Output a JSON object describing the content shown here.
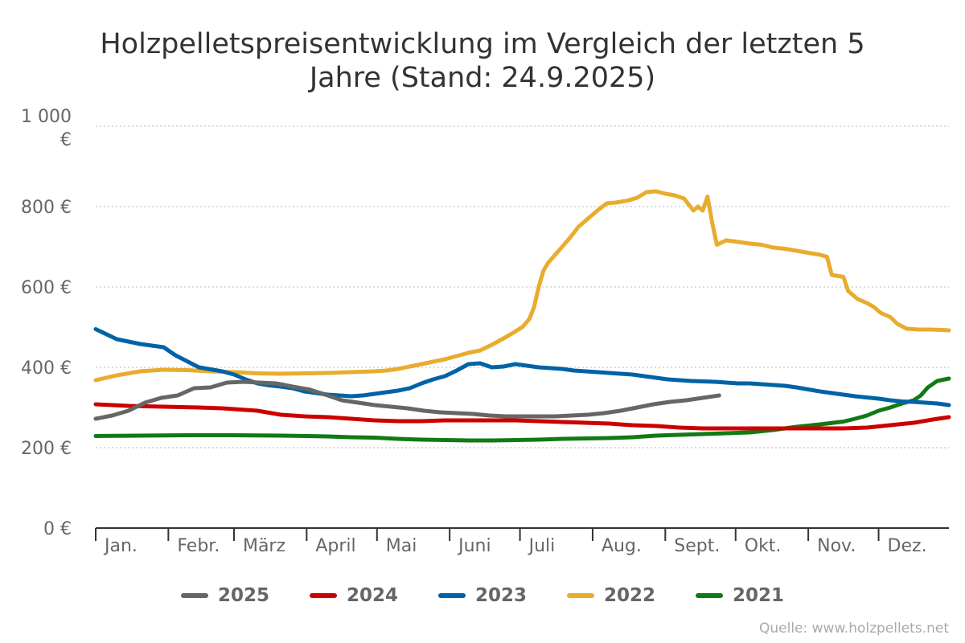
{
  "chart_data": {
    "type": "line",
    "title": "Holzpelletspreisentwicklung im Vergleich der letzten 5 Jahre (Stand: 24.9.2025)",
    "xlabel": "",
    "ylabel": "",
    "x_axis": {
      "type": "month-of-year",
      "categories": [
        "Jan.",
        "Febr.",
        "März",
        "April",
        "Mai",
        "Juni",
        "Juli",
        "Aug.",
        "Sept.",
        "Okt.",
        "Nov.",
        "Dez."
      ]
    },
    "y_axis": {
      "ylim": [
        0,
        1000
      ],
      "ticks": [
        0,
        200,
        400,
        600,
        800,
        1000
      ],
      "tick_labels": [
        "0 €",
        "200 €",
        "400 €",
        "600 €",
        "800 €",
        "1 000 €"
      ]
    },
    "grid": "horizontal dotted",
    "legend_position": "bottom",
    "series": [
      {
        "name": "2025",
        "color": "#666666",
        "points": [
          [
            1,
            272
          ],
          [
            8,
            280
          ],
          [
            15,
            292
          ],
          [
            22,
            312
          ],
          [
            29,
            324
          ],
          [
            36,
            330
          ],
          [
            43,
            348
          ],
          [
            50,
            350
          ],
          [
            57,
            362
          ],
          [
            64,
            364
          ],
          [
            71,
            362
          ],
          [
            78,
            360
          ],
          [
            85,
            352
          ],
          [
            92,
            345
          ],
          [
            99,
            332
          ],
          [
            106,
            318
          ],
          [
            113,
            312
          ],
          [
            120,
            306
          ],
          [
            127,
            302
          ],
          [
            134,
            298
          ],
          [
            141,
            292
          ],
          [
            148,
            288
          ],
          [
            155,
            286
          ],
          [
            162,
            284
          ],
          [
            169,
            280
          ],
          [
            176,
            278
          ],
          [
            183,
            278
          ],
          [
            190,
            278
          ],
          [
            197,
            278
          ],
          [
            204,
            280
          ],
          [
            211,
            282
          ],
          [
            218,
            286
          ],
          [
            225,
            292
          ],
          [
            232,
            300
          ],
          [
            239,
            308
          ],
          [
            246,
            314
          ],
          [
            253,
            318
          ],
          [
            260,
            324
          ],
          [
            267,
            330
          ]
        ]
      },
      {
        "name": "2024",
        "color": "#cc0000",
        "points": [
          [
            1,
            308
          ],
          [
            15,
            304
          ],
          [
            30,
            302
          ],
          [
            45,
            300
          ],
          [
            55,
            298
          ],
          [
            60,
            296
          ],
          [
            70,
            292
          ],
          [
            80,
            282
          ],
          [
            90,
            278
          ],
          [
            100,
            276
          ],
          [
            110,
            272
          ],
          [
            120,
            268
          ],
          [
            130,
            266
          ],
          [
            140,
            266
          ],
          [
            150,
            268
          ],
          [
            160,
            268
          ],
          [
            170,
            268
          ],
          [
            180,
            268
          ],
          [
            190,
            266
          ],
          [
            200,
            264
          ],
          [
            210,
            262
          ],
          [
            220,
            260
          ],
          [
            230,
            256
          ],
          [
            240,
            254
          ],
          [
            250,
            250
          ],
          [
            260,
            248
          ],
          [
            270,
            248
          ],
          [
            280,
            248
          ],
          [
            290,
            248
          ],
          [
            300,
            248
          ],
          [
            310,
            248
          ],
          [
            320,
            248
          ],
          [
            330,
            250
          ],
          [
            340,
            256
          ],
          [
            350,
            262
          ],
          [
            358,
            270
          ],
          [
            365,
            276
          ]
        ]
      },
      {
        "name": "2023",
        "color": "#0063a6",
        "points": [
          [
            1,
            495
          ],
          [
            10,
            470
          ],
          [
            20,
            458
          ],
          [
            30,
            450
          ],
          [
            35,
            430
          ],
          [
            40,
            415
          ],
          [
            45,
            400
          ],
          [
            50,
            395
          ],
          [
            55,
            390
          ],
          [
            60,
            382
          ],
          [
            65,
            370
          ],
          [
            70,
            360
          ],
          [
            75,
            355
          ],
          [
            80,
            352
          ],
          [
            85,
            348
          ],
          [
            90,
            340
          ],
          [
            95,
            336
          ],
          [
            100,
            332
          ],
          [
            105,
            330
          ],
          [
            110,
            328
          ],
          [
            115,
            330
          ],
          [
            120,
            334
          ],
          [
            125,
            338
          ],
          [
            130,
            342
          ],
          [
            135,
            348
          ],
          [
            140,
            360
          ],
          [
            145,
            370
          ],
          [
            150,
            378
          ],
          [
            155,
            392
          ],
          [
            160,
            408
          ],
          [
            165,
            410
          ],
          [
            170,
            400
          ],
          [
            175,
            402
          ],
          [
            180,
            408
          ],
          [
            185,
            404
          ],
          [
            190,
            400
          ],
          [
            195,
            398
          ],
          [
            200,
            396
          ],
          [
            205,
            392
          ],
          [
            210,
            390
          ],
          [
            215,
            388
          ],
          [
            220,
            386
          ],
          [
            225,
            384
          ],
          [
            230,
            382
          ],
          [
            235,
            378
          ],
          [
            240,
            374
          ],
          [
            245,
            370
          ],
          [
            250,
            368
          ],
          [
            255,
            366
          ],
          [
            260,
            365
          ],
          [
            265,
            364
          ],
          [
            270,
            362
          ],
          [
            275,
            360
          ],
          [
            280,
            360
          ],
          [
            285,
            358
          ],
          [
            290,
            356
          ],
          [
            295,
            354
          ],
          [
            300,
            350
          ],
          [
            305,
            345
          ],
          [
            310,
            340
          ],
          [
            315,
            336
          ],
          [
            320,
            332
          ],
          [
            325,
            328
          ],
          [
            330,
            325
          ],
          [
            335,
            322
          ],
          [
            340,
            318
          ],
          [
            345,
            315
          ],
          [
            350,
            314
          ],
          [
            355,
            312
          ],
          [
            360,
            310
          ],
          [
            365,
            306
          ]
        ]
      },
      {
        "name": "2022",
        "color": "#e8ac2e",
        "points": [
          [
            1,
            368
          ],
          [
            10,
            380
          ],
          [
            20,
            390
          ],
          [
            30,
            394
          ],
          [
            40,
            393
          ],
          [
            50,
            390
          ],
          [
            60,
            388
          ],
          [
            70,
            385
          ],
          [
            80,
            384
          ],
          [
            90,
            385
          ],
          [
            100,
            386
          ],
          [
            110,
            388
          ],
          [
            120,
            390
          ],
          [
            125,
            392
          ],
          [
            130,
            396
          ],
          [
            135,
            402
          ],
          [
            140,
            408
          ],
          [
            145,
            414
          ],
          [
            150,
            420
          ],
          [
            155,
            428
          ],
          [
            160,
            436
          ],
          [
            165,
            442
          ],
          [
            170,
            456
          ],
          [
            175,
            472
          ],
          [
            178,
            482
          ],
          [
            183,
            500
          ],
          [
            186,
            520
          ],
          [
            188,
            550
          ],
          [
            190,
            600
          ],
          [
            192,
            640
          ],
          [
            194,
            660
          ],
          [
            197,
            680
          ],
          [
            200,
            700
          ],
          [
            203,
            720
          ],
          [
            207,
            750
          ],
          [
            211,
            770
          ],
          [
            215,
            790
          ],
          [
            219,
            808
          ],
          [
            223,
            810
          ],
          [
            228,
            815
          ],
          [
            232,
            822
          ],
          [
            236,
            836
          ],
          [
            240,
            838
          ],
          [
            244,
            832
          ],
          [
            248,
            828
          ],
          [
            252,
            820
          ],
          [
            256,
            790
          ],
          [
            258,
            800
          ],
          [
            260,
            790
          ],
          [
            262,
            825
          ],
          [
            264,
            760
          ],
          [
            266,
            705
          ],
          [
            270,
            716
          ],
          [
            275,
            712
          ],
          [
            280,
            708
          ],
          [
            285,
            705
          ],
          [
            290,
            698
          ],
          [
            295,
            695
          ],
          [
            300,
            690
          ],
          [
            305,
            685
          ],
          [
            310,
            680
          ],
          [
            313,
            675
          ],
          [
            315,
            630
          ],
          [
            320,
            625
          ],
          [
            322,
            590
          ],
          [
            326,
            570
          ],
          [
            330,
            560
          ],
          [
            333,
            550
          ],
          [
            336,
            535
          ],
          [
            340,
            525
          ],
          [
            343,
            508
          ],
          [
            347,
            496
          ],
          [
            352,
            494
          ],
          [
            357,
            494
          ],
          [
            362,
            493
          ],
          [
            365,
            492
          ]
        ]
      },
      {
        "name": "2021",
        "color": "#117a14",
        "points": [
          [
            1,
            229
          ],
          [
            20,
            230
          ],
          [
            40,
            231
          ],
          [
            60,
            231
          ],
          [
            80,
            230
          ],
          [
            100,
            228
          ],
          [
            110,
            226
          ],
          [
            120,
            225
          ],
          [
            130,
            222
          ],
          [
            140,
            220
          ],
          [
            150,
            219
          ],
          [
            160,
            218
          ],
          [
            170,
            218
          ],
          [
            180,
            219
          ],
          [
            190,
            220
          ],
          [
            200,
            222
          ],
          [
            210,
            223
          ],
          [
            220,
            224
          ],
          [
            230,
            226
          ],
          [
            240,
            230
          ],
          [
            250,
            232
          ],
          [
            260,
            234
          ],
          [
            270,
            236
          ],
          [
            280,
            238
          ],
          [
            290,
            244
          ],
          [
            300,
            252
          ],
          [
            310,
            258
          ],
          [
            320,
            265
          ],
          [
            325,
            272
          ],
          [
            330,
            280
          ],
          [
            335,
            292
          ],
          [
            340,
            300
          ],
          [
            345,
            310
          ],
          [
            350,
            318
          ],
          [
            353,
            330
          ],
          [
            356,
            350
          ],
          [
            360,
            366
          ],
          [
            365,
            372
          ]
        ]
      }
    ],
    "source_note": "Quelle: www.holzpellets.net"
  }
}
